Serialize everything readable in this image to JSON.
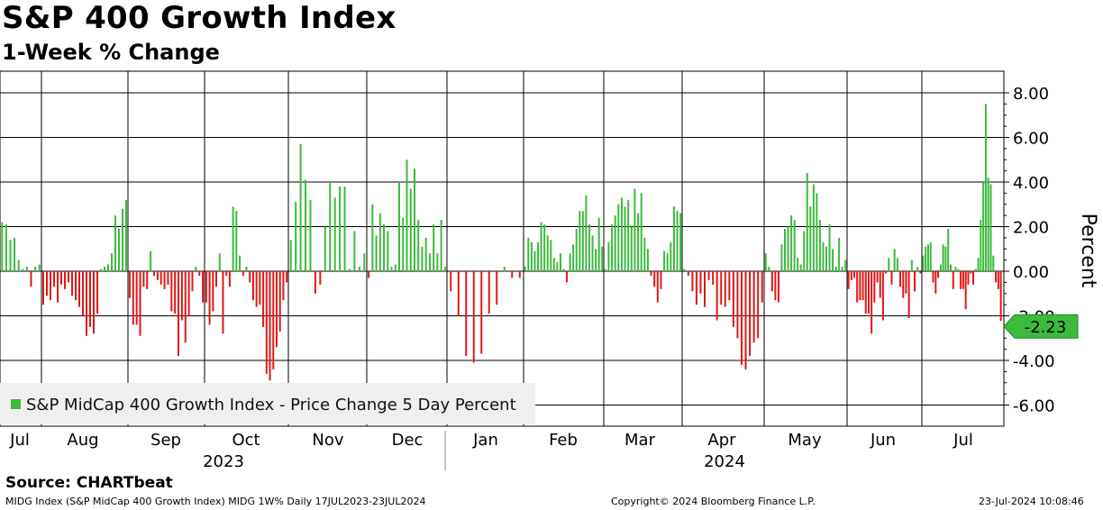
{
  "header": {
    "title": "S&P 400 Growth Index",
    "subtitle": "1-Week % Change"
  },
  "footer": {
    "source": "Source: CHARTbeat",
    "left": "MIDG Index (S&P MidCap 400 Growth Index) MIDG 1W%  Daily 17JUL2023-23JUL2024",
    "center": "Copyright© 2024 Bloomberg Finance L.P.",
    "right": "23-Jul-2024 10:08:46"
  },
  "colors": {
    "positive": "#3dba3d",
    "negative": "#e01818",
    "label_bg": "#3dba3d",
    "grid": "#000000"
  },
  "chart_data": {
    "type": "bar",
    "title": "S&P 400 Growth Index",
    "subtitle": "1-Week % Change",
    "xlabel": "",
    "ylabel": "Percent",
    "ylim": [
      -6.9,
      8.9
    ],
    "yticks": [
      8,
      6,
      4,
      2,
      0,
      -2,
      -4,
      -6
    ],
    "ytick_labels": [
      "8.00",
      "6.00",
      "4.00",
      "2.00",
      "0.00",
      "-2.00",
      "-4.00",
      "-6.00"
    ],
    "month_labels": [
      "Jul",
      "Aug",
      "Sep",
      "Oct",
      "Nov",
      "Dec",
      "Jan",
      "Feb",
      "Mar",
      "Apr",
      "May",
      "Jun",
      "Jul"
    ],
    "year_labels": [
      "2023",
      "2024"
    ],
    "legend": "S&P MidCap 400 Growth Index - Price Change 5 Day Percent",
    "legend_position": "bottom-left",
    "last_value_label": "-2.23",
    "series": [
      {
        "name": "S&P MidCap 400 Growth Index - Price Change 5 Day Percent",
        "segments": [
          [
            2.2,
            2.1,
            1.4,
            1.5,
            0.5,
            0.1,
            0.2,
            -0.7,
            0.2,
            0.3
          ],
          [
            -1.5,
            -1.1,
            -1.3,
            -0.7,
            -1.4,
            -0.6,
            -0.8,
            -0.5,
            -1.1,
            -1.3,
            -1.6,
            -2.0,
            -2.9,
            -2.5,
            -2.8,
            -1.9,
            0.1,
            0.2,
            0.3,
            0.8,
            2.5,
            1.9,
            2.8,
            3.2
          ],
          [
            -1.2,
            -2.4,
            -2.4,
            -2.9,
            -0.7,
            -0.8,
            0.9,
            -0.2,
            -0.4,
            -0.6,
            -0.8,
            -0.6,
            -1.8,
            -1.9,
            -3.8,
            -2.2,
            -3.2,
            -2.0,
            -0.9,
            0.2,
            -0.2,
            -1.4
          ],
          [
            -1.4,
            -2.4,
            -1.8,
            -0.7,
            0.8,
            -2.8,
            -0.2,
            -0.7,
            2.9,
            2.7,
            0.7,
            -0.2,
            0.2,
            -0.5,
            -1.3,
            -1.6,
            -1.5,
            -2.5,
            -4.6,
            -4.9,
            -4.4,
            -3.4,
            -2.7,
            -1.3,
            -0.5
          ],
          [
            1.4,
            3.1,
            5.7,
            4.1,
            3.2,
            -1.0,
            -0.6,
            2.0,
            4.0,
            3.3,
            3.8,
            3.8,
            0.1,
            1.8,
            0.2,
            0.8
          ],
          [
            -0.3,
            3.0,
            1.6,
            2.6,
            2.1,
            1.8,
            0.2,
            0.3,
            4.0,
            2.4,
            5.0,
            3.7,
            4.6,
            2.3,
            1.1,
            1.5,
            0.8,
            2.1,
            0.8,
            2.3,
            0.2
          ],
          [
            -0.9,
            -2.0,
            -3.8,
            -4.1,
            -3.7,
            -1.9,
            -1.5,
            0.2,
            -0.3,
            -0.3
          ],
          [
            0.2,
            1.5,
            1.3,
            0.9,
            1.3,
            2.2,
            2.1,
            1.6,
            1.4,
            0.6,
            0.4,
            0.8,
            0.1,
            -0.5,
            0.8,
            1.2,
            1.9,
            2.7,
            2.7,
            3.4,
            2.1,
            1.6,
            1.0,
            2.4,
            1.1
          ],
          [
            0.1,
            1.3,
            2.1,
            2.5,
            3.0,
            3.3,
            2.9,
            3.2,
            2.0,
            3.7,
            2.6,
            3.5,
            1.5,
            1.0,
            -0.2,
            -0.7,
            -1.4,
            -0.8,
            0.9,
            0.8,
            1.3,
            2.9,
            2.7,
            2.6
          ],
          [
            0.1,
            -0.2,
            -0.9,
            -1.5,
            -1.0,
            -1.6,
            -0.4,
            -0.6,
            -2.2,
            -1.5,
            -1.6,
            -1.3,
            -2.5,
            -3.0,
            -4.2,
            -4.4,
            -3.8,
            -3.2,
            -3.0,
            -1.4
          ],
          [
            0.8,
            0.2,
            -0.9,
            -1.3,
            -1.4,
            1.2,
            1.9,
            2.0,
            2.5,
            2.3,
            0.6,
            0.3,
            1.8,
            4.4,
            2.9,
            3.9,
            3.5,
            2.3,
            1.3,
            1.1,
            2.1,
            1.0,
            0.2,
            1.5,
            0.2,
            0.5
          ],
          [
            -0.8,
            -0.4,
            -0.3,
            -1.4,
            -1.3,
            -1.3,
            -1.9,
            -1.9,
            -2.8,
            -1.4,
            -0.5,
            -1.2,
            -2.2,
            -0.1,
            0.6,
            -0.6,
            1.0,
            0.6,
            -0.7,
            -1.2,
            -1.0,
            -2.1,
            0.5,
            -0.9,
            0.2,
            -0.1
          ],
          [
            0.7,
            1.1,
            1.2,
            1.3,
            -0.5,
            -1.0,
            -0.3,
            0.3,
            1.2,
            1.1,
            1.9,
            0.3,
            -0.8,
            0.2,
            0.1,
            -0.8,
            -0.8,
            -1.7,
            -0.6,
            -0.1,
            -0.6,
            0.1,
            0.6,
            2.3,
            4.0,
            7.5,
            4.2,
            3.9,
            0.7,
            -0.5,
            -0.8,
            -2.23
          ]
        ]
      }
    ]
  }
}
